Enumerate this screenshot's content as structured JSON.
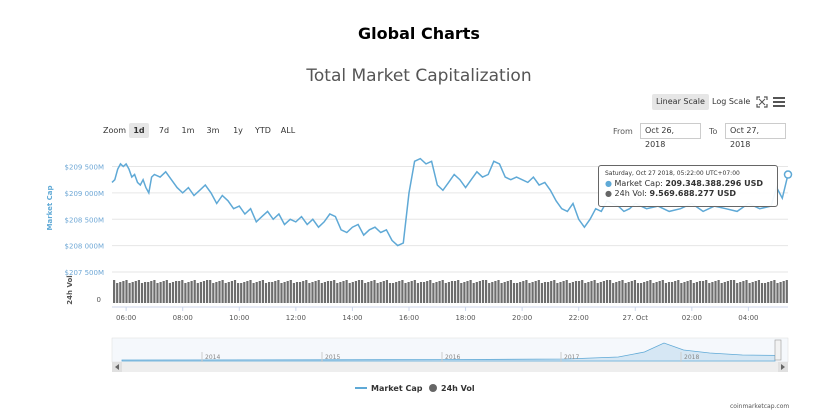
{
  "page_title": "Global Charts",
  "chart_title": "Total Market Capitalization",
  "scale": {
    "linear_label": "Linear Scale",
    "log_label": "Log Scale"
  },
  "zoom": {
    "label": "Zoom",
    "buttons": [
      "1d",
      "7d",
      "1m",
      "3m",
      "1y",
      "YTD",
      "ALL"
    ],
    "active": "1d"
  },
  "range": {
    "from_label": "From",
    "from_value": "Oct 26, 2018",
    "to_label": "To",
    "to_value": "Oct 27, 2018"
  },
  "tooltip": {
    "time": "Saturday, Oct 27 2018, 05:22:00 UTC+07:00",
    "market_cap_label": "Market Cap:",
    "market_cap_value": "209.348.388.296 USD",
    "vol_label": "24h Vol:",
    "vol_value": "9.569.688.277 USD"
  },
  "attribution": "coinmarketcap.com",
  "colors": {
    "market_cap": "#5fa9d6",
    "volume": "#666666",
    "grid": "#e6e6e6",
    "axis_text": "#6fa8d6"
  },
  "chart_data": {
    "type": "line",
    "y_axis": {
      "label": "Market Cap",
      "ticks": [
        "$207 500M",
        "$208 000M",
        "$208 500M",
        "$209 000M",
        "$209 500M"
      ],
      "tick_values": [
        207500,
        208000,
        208500,
        209000,
        209500
      ],
      "range": [
        207500,
        209700
      ],
      "unit": "USD millions"
    },
    "volume_axis": {
      "label": "24h Vol",
      "ticks": [
        "0"
      ]
    },
    "x_ticks": [
      "06:00",
      "08:00",
      "10:00",
      "12:00",
      "14:00",
      "16:00",
      "18:00",
      "20:00",
      "22:00",
      "27. Oct",
      "02:00",
      "04:00"
    ],
    "x_range_hours": [
      5.5,
      29.4
    ],
    "series": [
      {
        "name": "Market Cap",
        "x_hours": [
          5.5,
          5.6,
          5.7,
          5.8,
          5.9,
          6.0,
          6.1,
          6.2,
          6.3,
          6.4,
          6.5,
          6.6,
          6.7,
          6.8,
          6.9,
          7.0,
          7.2,
          7.4,
          7.6,
          7.8,
          8.0,
          8.2,
          8.4,
          8.6,
          8.8,
          9.0,
          9.2,
          9.4,
          9.6,
          9.8,
          10.0,
          10.2,
          10.4,
          10.6,
          10.8,
          11.0,
          11.2,
          11.4,
          11.6,
          11.8,
          12.0,
          12.2,
          12.4,
          12.6,
          12.8,
          13.0,
          13.2,
          13.4,
          13.6,
          13.8,
          14.0,
          14.2,
          14.4,
          14.6,
          14.8,
          15.0,
          15.2,
          15.4,
          15.6,
          15.8,
          16.0,
          16.1,
          16.2,
          16.4,
          16.6,
          16.8,
          17.0,
          17.2,
          17.4,
          17.6,
          17.8,
          18.0,
          18.2,
          18.4,
          18.6,
          18.8,
          19.0,
          19.2,
          19.4,
          19.6,
          19.8,
          20.0,
          20.2,
          20.4,
          20.6,
          20.8,
          21.0,
          21.2,
          21.4,
          21.6,
          21.8,
          22.0,
          22.2,
          22.4,
          22.6,
          22.8,
          23.0,
          23.2,
          23.4,
          23.6,
          23.8,
          24.0,
          24.4,
          24.8,
          25.2,
          25.6,
          26.0,
          26.4,
          26.8,
          27.2,
          27.6,
          28.0,
          28.4,
          28.8,
          29.0,
          29.2,
          29.4
        ],
        "values": [
          209200,
          209250,
          209450,
          209550,
          209500,
          209550,
          209450,
          209300,
          209350,
          209200,
          209150,
          209250,
          209100,
          209000,
          209300,
          209350,
          209300,
          209400,
          209250,
          209100,
          209000,
          209100,
          208950,
          209050,
          209150,
          209000,
          208800,
          208950,
          208850,
          208700,
          208750,
          208600,
          208700,
          208450,
          208550,
          208650,
          208500,
          208600,
          208400,
          208500,
          208450,
          208550,
          208400,
          208500,
          208350,
          208450,
          208600,
          208550,
          208300,
          208250,
          208350,
          208400,
          208200,
          208300,
          208350,
          208250,
          208300,
          208100,
          208000,
          208050,
          209000,
          209300,
          209600,
          209650,
          209550,
          209600,
          209150,
          209050,
          209200,
          209350,
          209250,
          209100,
          209250,
          209400,
          209300,
          209350,
          209600,
          209550,
          209300,
          209250,
          209300,
          209250,
          209200,
          209300,
          209150,
          209200,
          209050,
          208850,
          208700,
          208650,
          208800,
          208500,
          208350,
          208500,
          208700,
          208650,
          208850,
          208800,
          208750,
          208650,
          208700,
          208800,
          208700,
          208750,
          208650,
          208700,
          208800,
          208650,
          208750,
          208700,
          208650,
          208800,
          208700,
          208750,
          209100,
          208900,
          209348
        ]
      },
      {
        "name": "24h Vol",
        "values": []
      }
    ],
    "navigator": {
      "labels": [
        "2014",
        "2015",
        "2016",
        "2017",
        "2018"
      ]
    },
    "legend": {
      "items": [
        "Market Cap",
        "24h Vol"
      ],
      "position": "bottom-center"
    },
    "grid": true
  }
}
